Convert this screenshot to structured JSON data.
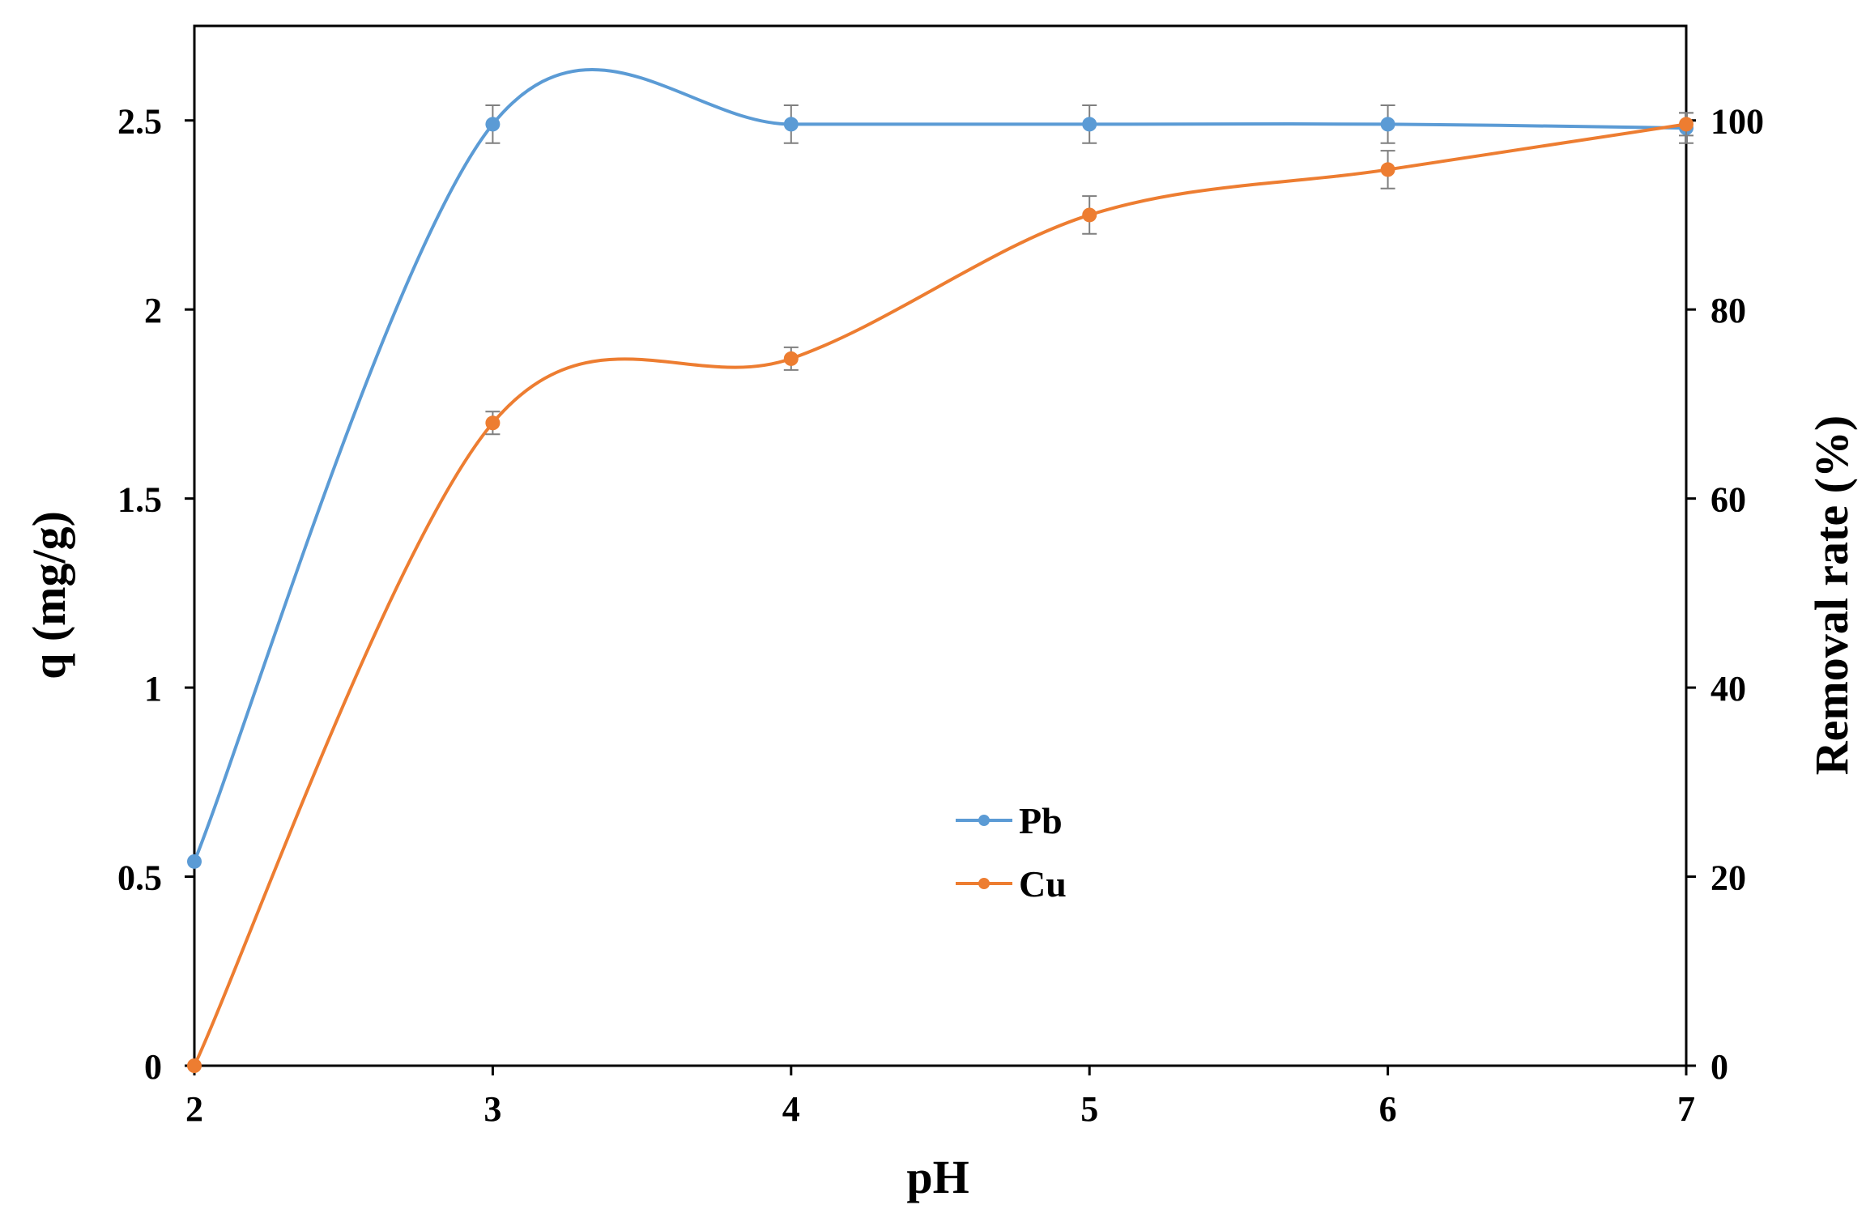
{
  "chart_data": {
    "type": "line",
    "title": "",
    "xlabel": "pH",
    "ylabel": "q (mg/g)",
    "y2label": "Removal rate (%)",
    "x": [
      2,
      3,
      4,
      5,
      6,
      7
    ],
    "x_ticks": [
      "2",
      "3",
      "4",
      "5",
      "6",
      "7"
    ],
    "xlim": [
      2,
      7
    ],
    "ylim": [
      0,
      2.75
    ],
    "y_ticks": [
      "0",
      "0.5",
      "1",
      "1.5",
      "2",
      "2.5"
    ],
    "y2lim": [
      0,
      110
    ],
    "y2_ticks": [
      "0",
      "20",
      "40",
      "60",
      "80",
      "100"
    ],
    "grid": false,
    "legend_position": "center",
    "smooth": true,
    "series": [
      {
        "name": "Pb",
        "color": "#5B9BD5",
        "values": [
          0.54,
          2.49,
          2.49,
          2.49,
          2.49,
          2.48
        ],
        "error": [
          0,
          0.05,
          0.05,
          0.05,
          0.05,
          0.04
        ]
      },
      {
        "name": "Cu",
        "color": "#ED7D31",
        "values": [
          0.0,
          1.7,
          1.87,
          2.25,
          2.37,
          2.49
        ],
        "error": [
          0,
          0.03,
          0.03,
          0.05,
          0.05,
          0.03
        ]
      }
    ]
  }
}
